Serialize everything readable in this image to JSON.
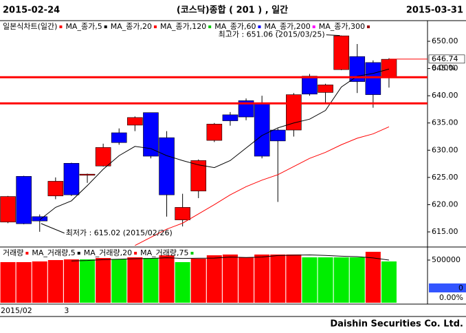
{
  "header": {
    "start": "2015-02-24",
    "title": "(코스닥)종합  ( 201 ) ,  일간",
    "end": "2015-03-31"
  },
  "footer": "Daishin Securities Co. Ltd.",
  "chart_data": [
    {
      "type": "candlestick",
      "chart_name": {
        "name": "일본식차트(일간)",
        "color": "#ff0000"
      },
      "categories": [
        "2015/02",
        null,
        null,
        null,
        "3",
        null,
        null,
        null,
        null,
        null,
        null,
        null,
        null,
        null,
        null,
        null,
        null,
        null,
        null,
        null,
        null,
        null,
        null,
        null,
        null
      ],
      "open": [
        616.8,
        625.2,
        617.8,
        621.6,
        627.6,
        625.4,
        627.1,
        633.2,
        634.6,
        636.9,
        632.3,
        617.2,
        622.5,
        631.8,
        636.5,
        639.1,
        638.6,
        633.7,
        633.7,
        643.6,
        640.6,
        644.8,
        647.2,
        646.1,
        643.4
      ],
      "high": [
        621.6,
        625.3,
        618.2,
        625.0,
        627.7,
        625.7,
        631.2,
        634.0,
        636.2,
        636.9,
        633.5,
        622.0,
        628.3,
        635.0,
        637.0,
        639.5,
        640.0,
        634.0,
        640.5,
        644.0,
        642.2,
        651.06,
        649.5,
        646.5,
        646.9
      ],
      "low": [
        616.6,
        616.4,
        615.02,
        621.0,
        621.6,
        624.0,
        627.0,
        631.0,
        633.5,
        628.5,
        617.8,
        616.0,
        621.2,
        631.5,
        634.5,
        635.5,
        628.5,
        620.5,
        632.5,
        640.0,
        638.5,
        644.7,
        640.5,
        637.8,
        641.5
      ],
      "close": [
        621.5,
        616.5,
        617.0,
        624.3,
        621.8,
        625.6,
        630.5,
        631.4,
        636.0,
        628.9,
        621.8,
        619.5,
        628.1,
        634.8,
        635.4,
        636.1,
        628.9,
        631.7,
        640.2,
        640.3,
        642.0,
        651.0,
        642.6,
        640.2,
        646.7
      ],
      "up_color": "#ff0000",
      "down_color": "#0000ff",
      "series": [
        {
          "name": "MA_종가,5",
          "color": "#000000",
          "values": [
            null,
            null,
            617.2,
            619.5,
            620.7,
            623.5,
            626.5,
            629,
            630.7,
            630.3,
            629,
            628.1,
            627.3,
            626.8,
            628.1,
            630.4,
            632.7,
            634.1,
            635,
            635.7,
            637.3,
            641.6,
            643.6,
            644.1,
            644.9
          ]
        },
        {
          "name": "MA_종가,20",
          "color": "#ff0000",
          "values": [
            null,
            null,
            null,
            null,
            null,
            null,
            null,
            null,
            612.5,
            614,
            615.5,
            616.6,
            618.3,
            620,
            621.8,
            623.3,
            624.5,
            625.5,
            627,
            628.5,
            629.6,
            631,
            632.2,
            633,
            634.3
          ]
        },
        {
          "name": "MA_종가,120",
          "color": "#00cc00"
        },
        {
          "name": "MA_종가,60",
          "color": "#0000ff"
        },
        {
          "name": "MA_종가,200",
          "color": "#ff00ff"
        },
        {
          "name": "MA_종가,300",
          "color": "#990000"
        }
      ],
      "hlines": [
        643.4,
        638.6
      ],
      "hline_color": "#ff0000",
      "annotations": {
        "max": {
          "text": "최고가 : 651.06 (2015/03/25)",
          "color": "#ff0000"
        },
        "min": {
          "text": "최저가 : 615.02 (2015/02/26)",
          "color": "#0000cc"
        }
      },
      "last": {
        "value": 646.74,
        "change": "0.00%"
      },
      "ylim": [
        612.35,
        653.54
      ],
      "yticks": [
        {
          "value": 650,
          "label": "650.00"
        },
        {
          "value": 645,
          "label": "645.00"
        },
        {
          "value": 640,
          "label": "640.00"
        },
        {
          "value": 635,
          "label": "635.00"
        },
        {
          "value": 630,
          "label": "630.00"
        },
        {
          "value": 625,
          "label": "625.00"
        },
        {
          "value": 620,
          "label": "620.00"
        },
        {
          "value": 615,
          "label": "615.00"
        }
      ]
    },
    {
      "type": "bar",
      "name": "거래량",
      "color": "#ff0000",
      "values": [
        476000,
        476000,
        484000,
        500000,
        508000,
        508000,
        524000,
        508000,
        532000,
        524000,
        556000,
        476000,
        516000,
        556000,
        565000,
        532000,
        565000,
        565000,
        565000,
        532000,
        532000,
        532000,
        532000,
        597000,
        484000
      ],
      "colors": [
        "#ff0000",
        "#ff0000",
        "#ff0000",
        "#ff0000",
        "#ff0000",
        "#00ee00",
        "#ff0000",
        "#00ee00",
        "#ff0000",
        "#00ee00",
        "#ff0000",
        "#00ee00",
        "#ff0000",
        "#ff0000",
        "#ff0000",
        "#ff0000",
        "#ff0000",
        "#ff0000",
        "#ff0000",
        "#00ee00",
        "#00ee00",
        "#00ee00",
        "#00ee00",
        "#ff0000",
        "#00ee00"
      ],
      "series": [
        {
          "name": "MA_거래량,5",
          "color": "#000000",
          "values": [
            null,
            null,
            null,
            null,
            490000,
            495000,
            505000,
            510000,
            516000,
            519000,
            527000,
            519000,
            522000,
            523000,
            535000,
            530000,
            535000,
            553000,
            557000,
            560000,
            554000,
            545000,
            540000,
            525000,
            500000
          ]
        },
        {
          "name": "MA_거래량,20",
          "color": "#ff0000"
        },
        {
          "name": "MA_거래량,75",
          "color": "#00cc00"
        }
      ],
      "last": {
        "value": 0,
        "change": "0.00%"
      },
      "ylim": [
        0,
        629000
      ],
      "yticks": [
        500000
      ]
    }
  ]
}
